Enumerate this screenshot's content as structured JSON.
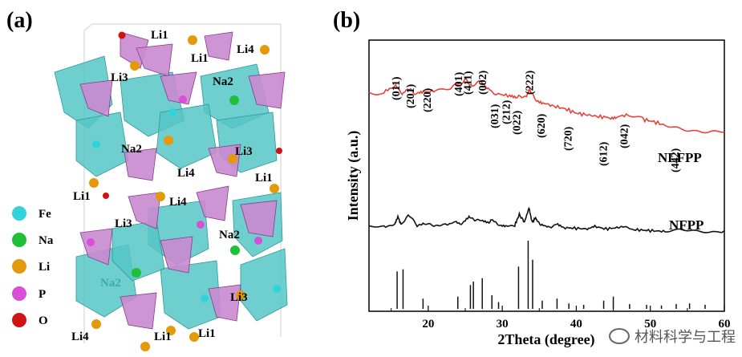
{
  "panel_a": {
    "label": "(a)",
    "site_labels": [
      "Li1",
      "Li1",
      "Li4",
      "Li3",
      "Na2",
      "Na2",
      "Li3",
      "Li4",
      "Li1",
      "Li1",
      "Li4",
      "Li3",
      "Na2",
      "Na2",
      "Li3",
      "Li4",
      "Li1",
      "Li1"
    ],
    "legend": [
      {
        "label": "Fe",
        "color": "#32d2dc"
      },
      {
        "label": "Na",
        "color": "#1fbf3a"
      },
      {
        "label": "Li",
        "color": "#e39a0a"
      },
      {
        "label": "P",
        "color": "#d94fd8"
      },
      {
        "label": "O",
        "color": "#d01414"
      }
    ],
    "colors": {
      "octahedron": "#56c6c6",
      "tetrahedron": "#c98ad0"
    }
  },
  "panel_b": {
    "label": "(b)",
    "chart_data": {
      "type": "line",
      "xlabel": "2Theta (degree)",
      "ylabel": "Intensity (a.u.)",
      "xlim": [
        12,
        60
      ],
      "xticks": [
        20,
        30,
        40,
        50,
        60
      ],
      "series": [
        {
          "name": "NLFPP",
          "color": "#e8433a",
          "x": [
            12,
            14,
            15.6,
            16.5,
            17.2,
            18.5,
            19.5,
            21,
            23,
            24.2,
            25.1,
            26,
            27.2,
            28.3,
            29.5,
            31,
            32,
            33.3,
            33.7,
            34.5,
            35.5,
            37,
            38.5,
            40,
            41.5,
            43,
            44.5,
            45.5,
            47,
            49,
            50.5,
            52,
            54,
            56,
            58,
            60
          ],
          "y": [
            0.86,
            0.85,
            0.95,
            0.84,
            0.9,
            0.84,
            0.86,
            0.88,
            0.92,
            0.96,
            1.0,
            0.93,
            0.99,
            0.88,
            0.84,
            0.82,
            0.8,
            0.82,
            0.91,
            0.78,
            0.74,
            0.7,
            0.67,
            0.62,
            0.6,
            0.58,
            0.57,
            0.58,
            0.6,
            0.55,
            0.52,
            0.48,
            0.45,
            0.42,
            0.4,
            0.4
          ]
        },
        {
          "name": "NFPP",
          "color": "#111111",
          "x": [
            12,
            14,
            15.5,
            15.9,
            16.4,
            17.3,
            18.5,
            19.3,
            20.5,
            22,
            23.8,
            24.5,
            25.5,
            26.3,
            27.2,
            28.2,
            28.7,
            29.5,
            30.5,
            31.7,
            32.3,
            33,
            33.6,
            34,
            34.5,
            35.2,
            36.2,
            37.5,
            38.5,
            40,
            41.5,
            42.5,
            44,
            45.5,
            46.3,
            47.5,
            49,
            50.5,
            52,
            54,
            56,
            58,
            60
          ],
          "y": [
            0.32,
            0.32,
            0.36,
            0.48,
            0.35,
            0.52,
            0.34,
            0.39,
            0.34,
            0.35,
            0.4,
            0.36,
            0.48,
            0.44,
            0.42,
            0.39,
            0.45,
            0.36,
            0.34,
            0.35,
            0.52,
            0.4,
            0.62,
            0.4,
            0.46,
            0.35,
            0.31,
            0.37,
            0.31,
            0.3,
            0.29,
            0.33,
            0.29,
            0.31,
            0.34,
            0.28,
            0.27,
            0.26,
            0.25,
            0.27,
            0.25,
            0.24,
            0.26
          ]
        },
        {
          "name": "",
          "type": "stick",
          "color": "#111111",
          "x": [
            15.8,
            16.6,
            19.3,
            24.0,
            25.7,
            26.1,
            27.3,
            28.6,
            29.5,
            32.2,
            33.5,
            34.1,
            35.4,
            37.4,
            39.0,
            41.0,
            43.7,
            45.0,
            47.2,
            49.5,
            51.5,
            53.5,
            55.3,
            57.4
          ],
          "y": [
            0.55,
            0.58,
            0.15,
            0.18,
            0.35,
            0.4,
            0.45,
            0.2,
            0.1,
            0.62,
            1.0,
            0.72,
            0.12,
            0.15,
            0.08,
            0.06,
            0.12,
            0.18,
            0.07,
            0.06,
            0.05,
            0.07,
            0.08,
            0.06
          ]
        }
      ],
      "peak_labels": [
        {
          "text": "(011)",
          "x": 15.6
        },
        {
          "text": "(201)",
          "x": 17.5
        },
        {
          "text": "(220)",
          "x": 19.8
        },
        {
          "text": "(401)",
          "x": 24.0
        },
        {
          "text": "(411)",
          "x": 25.3
        },
        {
          "text": "(002)",
          "x": 27.3
        },
        {
          "text": "(031)",
          "x": 28.9
        },
        {
          "text": "(212)",
          "x": 30.5
        },
        {
          "text": "(022)",
          "x": 31.9
        },
        {
          "text": "(222)",
          "x": 33.6
        },
        {
          "text": "(620)",
          "x": 35.2
        },
        {
          "text": "(720)",
          "x": 38.8
        },
        {
          "text": "(612)",
          "x": 43.6
        },
        {
          "text": "(042)",
          "x": 46.4
        },
        {
          "text": "(442)",
          "x": 53.3
        }
      ]
    }
  },
  "watermark": "材料科学与工程"
}
